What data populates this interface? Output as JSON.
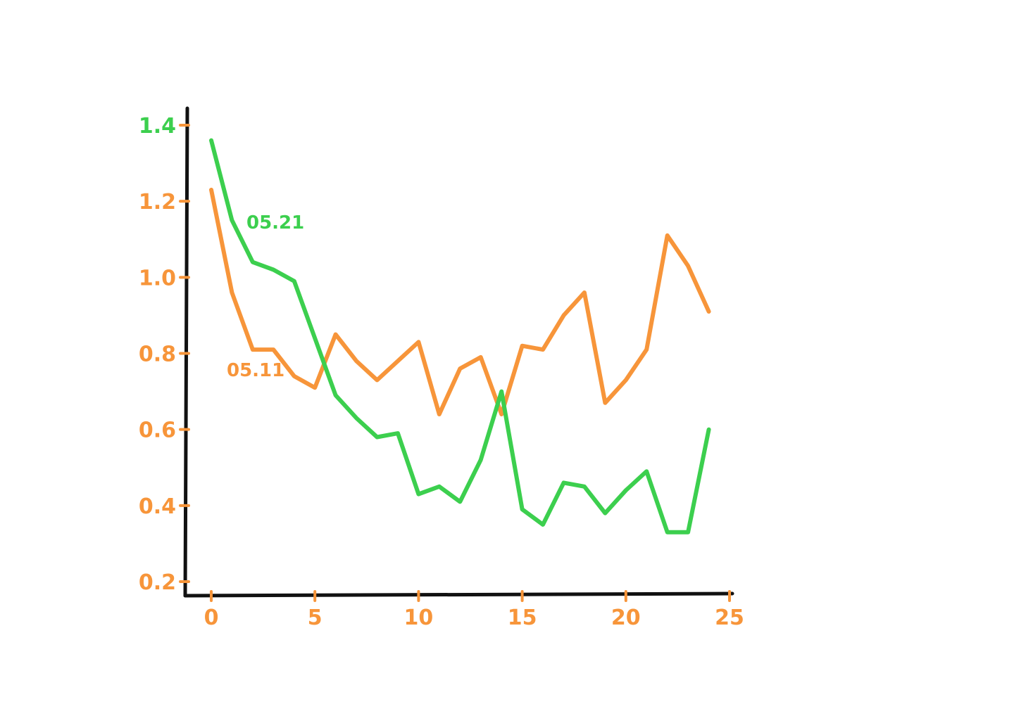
{
  "colors": {
    "axis": "#111111",
    "orange": "#f7953a",
    "green": "#3ccf4e"
  },
  "chart_data": {
    "type": "line",
    "title": "",
    "xlabel": "",
    "ylabel": "",
    "xlim": [
      0,
      25
    ],
    "ylim": [
      0.2,
      1.4
    ],
    "grid": false,
    "x_ticks": [
      0,
      5,
      10,
      15,
      20,
      25
    ],
    "x_tick_labels": [
      "0",
      "5",
      "10",
      "15",
      "20",
      "25"
    ],
    "y_ticks": [
      0.2,
      0.4,
      0.6,
      0.8,
      1.0,
      1.2,
      1.4
    ],
    "y_tick_labels": [
      "0.2",
      "0.4",
      "0.6",
      "0.8",
      "1.0",
      "1.2",
      "1.4"
    ],
    "series": [
      {
        "name": "05.11",
        "color": "#f7953a",
        "x": [
          0,
          1,
          2,
          3,
          4,
          5,
          6,
          7,
          8,
          9,
          10,
          11,
          12,
          13,
          14,
          15,
          16,
          17,
          18,
          19,
          20,
          21,
          22,
          23,
          24
        ],
        "y": [
          1.23,
          0.96,
          0.81,
          0.81,
          0.74,
          0.71,
          0.85,
          0.78,
          0.73,
          0.78,
          0.83,
          0.64,
          0.76,
          0.79,
          0.64,
          0.82,
          0.81,
          0.9,
          0.96,
          0.67,
          0.73,
          0.81,
          1.11,
          1.03,
          0.91
        ]
      },
      {
        "name": "05.21",
        "color": "#3ccf4e",
        "x": [
          0,
          1,
          2,
          3,
          4,
          5,
          6,
          7,
          8,
          9,
          10,
          11,
          12,
          13,
          14,
          15,
          16,
          17,
          18,
          19,
          20,
          21,
          22,
          23,
          24
        ],
        "y": [
          1.36,
          1.15,
          1.04,
          1.02,
          0.99,
          0.84,
          0.69,
          0.63,
          0.58,
          0.59,
          0.43,
          0.45,
          0.41,
          0.52,
          0.7,
          0.39,
          0.35,
          0.46,
          0.45,
          0.38,
          0.44,
          0.49,
          0.33,
          0.33,
          0.6
        ]
      }
    ]
  }
}
